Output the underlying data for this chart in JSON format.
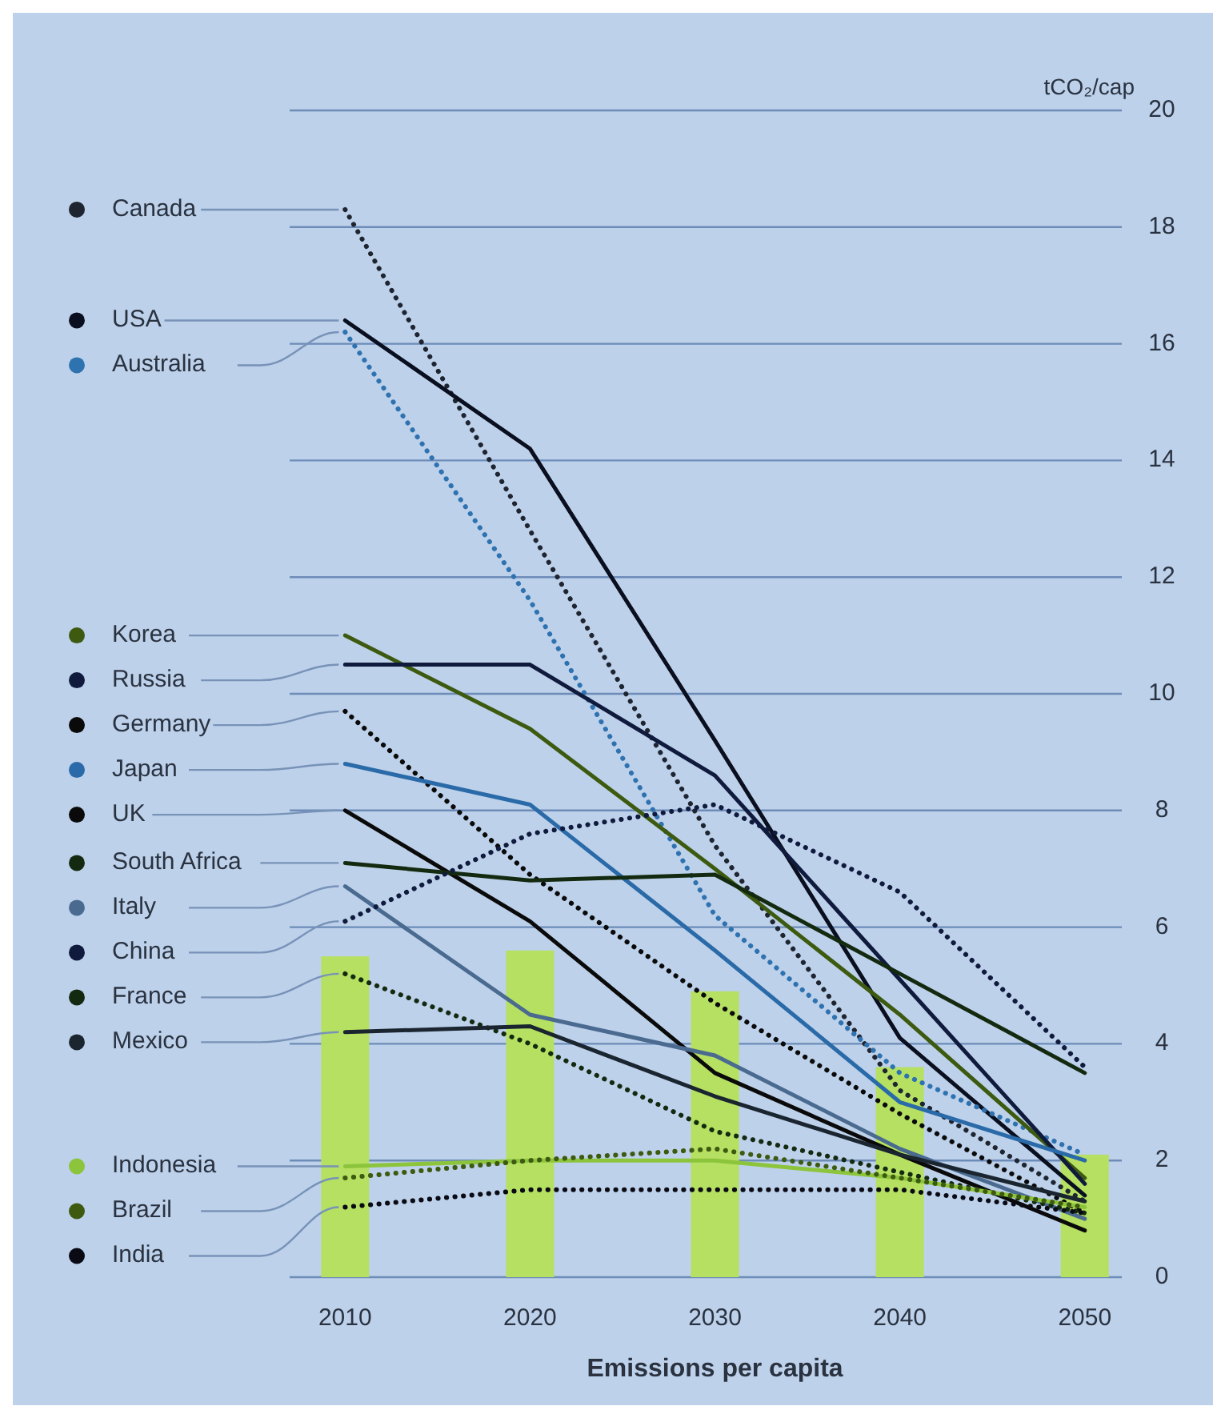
{
  "chart_data": {
    "type": "line",
    "xlabel": "Emissions per capita",
    "ylabel": "tCO₂/cap",
    "x": [
      2010,
      2020,
      2030,
      2040,
      2050
    ],
    "xlim": [
      2007,
      2052
    ],
    "xticks": [
      2010,
      2020,
      2030,
      2040,
      2050
    ],
    "ylim": [
      0,
      20
    ],
    "yticks": [
      0,
      2,
      4,
      6,
      8,
      10,
      12,
      14,
      16,
      18,
      20
    ],
    "grid": "y",
    "legend": "left",
    "series": [
      {
        "type": "bar",
        "color": "#b5e061",
        "values": [
          5.5,
          5.6,
          4.9,
          3.6,
          2.1
        ]
      },
      {
        "name": "Canada",
        "color": "#1e2430",
        "line_style": "dotted",
        "values": [
          18.3,
          12.8,
          7.4,
          3.2,
          1.3
        ]
      },
      {
        "name": "USA",
        "color": "#0a0f1f",
        "line_style": "solid",
        "values": [
          16.4,
          14.2,
          9.2,
          4.1,
          1.4
        ]
      },
      {
        "name": "Australia",
        "color": "#2f72b0",
        "line_style": "dotted",
        "values": [
          16.2,
          11.6,
          6.2,
          3.5,
          2.1
        ]
      },
      {
        "name": "Korea",
        "color": "#3d5a10",
        "line_style": "solid",
        "values": [
          11.0,
          9.4,
          7.0,
          4.5,
          1.7
        ]
      },
      {
        "name": "Russia",
        "color": "#0f1a3d",
        "line_style": "solid",
        "values": [
          10.5,
          10.5,
          8.6,
          5.1,
          1.6
        ]
      },
      {
        "name": "Germany",
        "color": "#0a0a0a",
        "line_style": "dotted",
        "values": [
          9.7,
          6.9,
          4.7,
          2.8,
          1.1
        ]
      },
      {
        "name": "Japan",
        "color": "#2a6aa8",
        "line_style": "solid",
        "values": [
          8.8,
          8.1,
          5.6,
          3.0,
          2.0
        ]
      },
      {
        "name": "UK",
        "color": "#0a0a0a",
        "line_style": "solid",
        "values": [
          8.0,
          6.1,
          3.5,
          2.1,
          0.8
        ]
      },
      {
        "name": "South Africa",
        "color": "#142a10",
        "line_style": "solid",
        "values": [
          7.1,
          6.8,
          6.9,
          5.2,
          3.5
        ]
      },
      {
        "name": "Italy",
        "color": "#4a6a90",
        "line_style": "solid",
        "values": [
          6.7,
          4.5,
          3.8,
          2.2,
          1.0
        ]
      },
      {
        "name": "China",
        "color": "#0f1a3d",
        "line_style": "dotted",
        "values": [
          6.1,
          7.6,
          8.1,
          6.6,
          3.6
        ]
      },
      {
        "name": "France",
        "color": "#142a10",
        "line_style": "dotted",
        "values": [
          5.2,
          4.0,
          2.5,
          1.8,
          1.1
        ]
      },
      {
        "name": "Mexico",
        "color": "#1a2530",
        "line_style": "solid",
        "values": [
          4.2,
          4.3,
          3.1,
          2.1,
          1.3
        ]
      },
      {
        "name": "Indonesia",
        "color": "#8cc43c",
        "line_style": "solid",
        "values": [
          1.9,
          2.0,
          2.0,
          1.7,
          1.2
        ]
      },
      {
        "name": "Brazil",
        "color": "#3d5a10",
        "line_style": "dotted",
        "values": [
          1.7,
          2.0,
          2.2,
          1.7,
          1.2
        ]
      },
      {
        "name": "India",
        "color": "#0a0a14",
        "line_style": "dotted",
        "values": [
          1.2,
          1.5,
          1.5,
          1.5,
          1.1
        ]
      }
    ]
  }
}
